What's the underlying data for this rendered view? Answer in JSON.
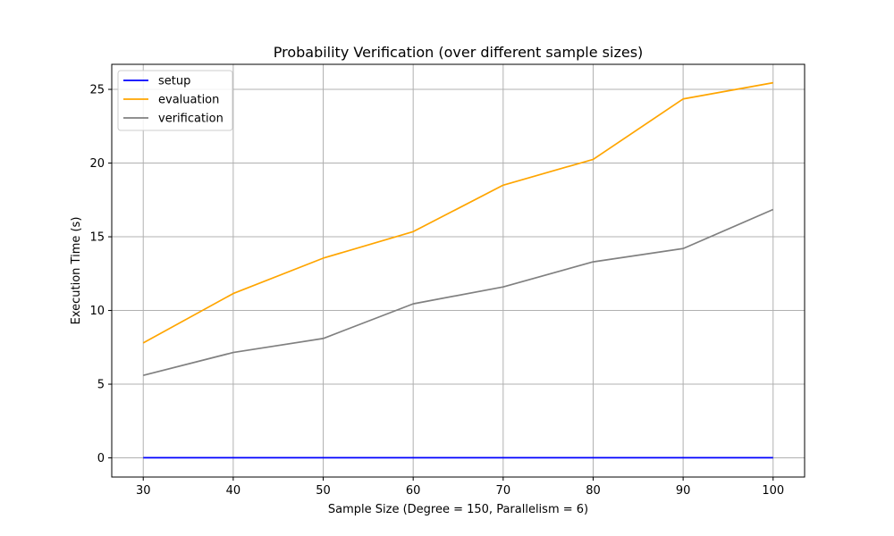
{
  "chart_data": {
    "type": "line",
    "title": "Probability Verification (over different sample sizes)",
    "xlabel": "Sample Size (Degree = 150, Parallelism = 6)",
    "ylabel": "Execution Time (s)",
    "x": [
      30,
      40,
      50,
      60,
      70,
      80,
      90,
      100
    ],
    "xticks": [
      "30",
      "40",
      "50",
      "60",
      "70",
      "80",
      "90",
      "100"
    ],
    "yticks": [
      "0",
      "5",
      "10",
      "15",
      "20",
      "25"
    ],
    "xlim": [
      26.5,
      103.5
    ],
    "ylim": [
      -1.3,
      26.7
    ],
    "grid": true,
    "legend_position": "upper left",
    "series": [
      {
        "name": "setup",
        "color": "#0000ff",
        "values": [
          0.01,
          0.01,
          0.01,
          0.01,
          0.01,
          0.01,
          0.01,
          0.01
        ]
      },
      {
        "name": "evaluation",
        "color": "#ffa500",
        "values": [
          7.8,
          11.15,
          13.55,
          15.35,
          18.5,
          20.25,
          24.35,
          25.45
        ]
      },
      {
        "name": "verification",
        "color": "#808080",
        "values": [
          5.6,
          7.15,
          8.1,
          10.45,
          11.6,
          13.3,
          14.2,
          16.85
        ]
      }
    ]
  }
}
